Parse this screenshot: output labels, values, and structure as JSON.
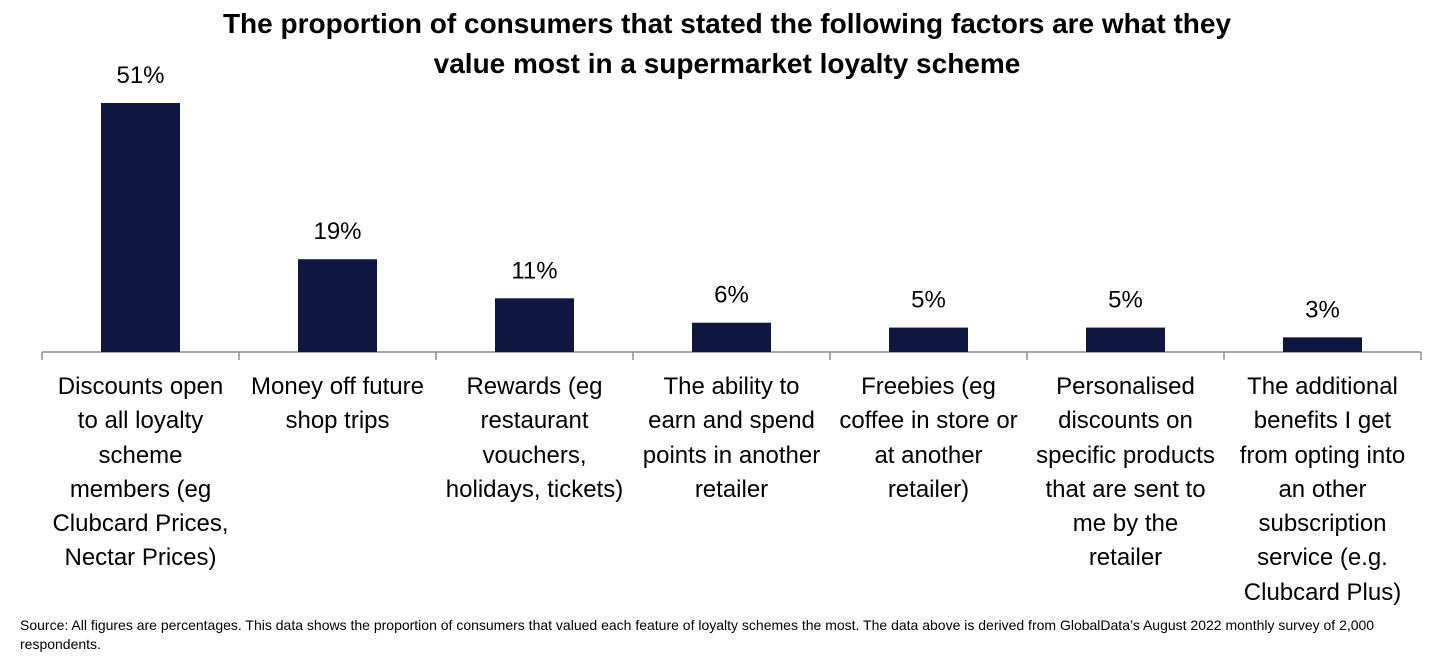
{
  "chart_data": {
    "type": "bar",
    "title_lines": [
      "The proportion of consumers that stated the following factors are what they",
      "value most in a supermarket loyalty scheme"
    ],
    "categories": [
      [
        "Discounts open",
        "to all loyalty",
        "scheme",
        "members (eg",
        "Clubcard Prices,",
        "Nectar Prices)"
      ],
      [
        "Money off future",
        "shop trips"
      ],
      [
        "Rewards (eg",
        "restaurant",
        "vouchers,",
        "holidays, tickets)"
      ],
      [
        "The ability to",
        "earn and spend",
        "points in another",
        "retailer"
      ],
      [
        "Freebies (eg",
        "coffee in store or",
        "at another",
        "retailer)"
      ],
      [
        "Personalised",
        "discounts on",
        "specific products",
        "that are sent to",
        "me by the",
        "retailer"
      ],
      [
        "The additional",
        "benefits I get",
        "from opting into",
        "an other",
        "subscription",
        "service (e.g.",
        "Clubcard Plus)"
      ]
    ],
    "values": [
      51,
      19,
      11,
      6,
      5,
      5,
      3
    ],
    "data_labels": [
      "51%",
      "19%",
      "11%",
      "6%",
      "5%",
      "5%",
      "3%"
    ],
    "ylim": [
      0,
      51
    ],
    "bar_color": "#0f1740",
    "grid": false,
    "legend": "none",
    "source": "Source: All figures are percentages. This data shows the proportion of consumers that valued each feature of loyalty schemes the most. The data above is derived from GlobalData’s August 2022 monthly survey of 2,000 respondents."
  }
}
